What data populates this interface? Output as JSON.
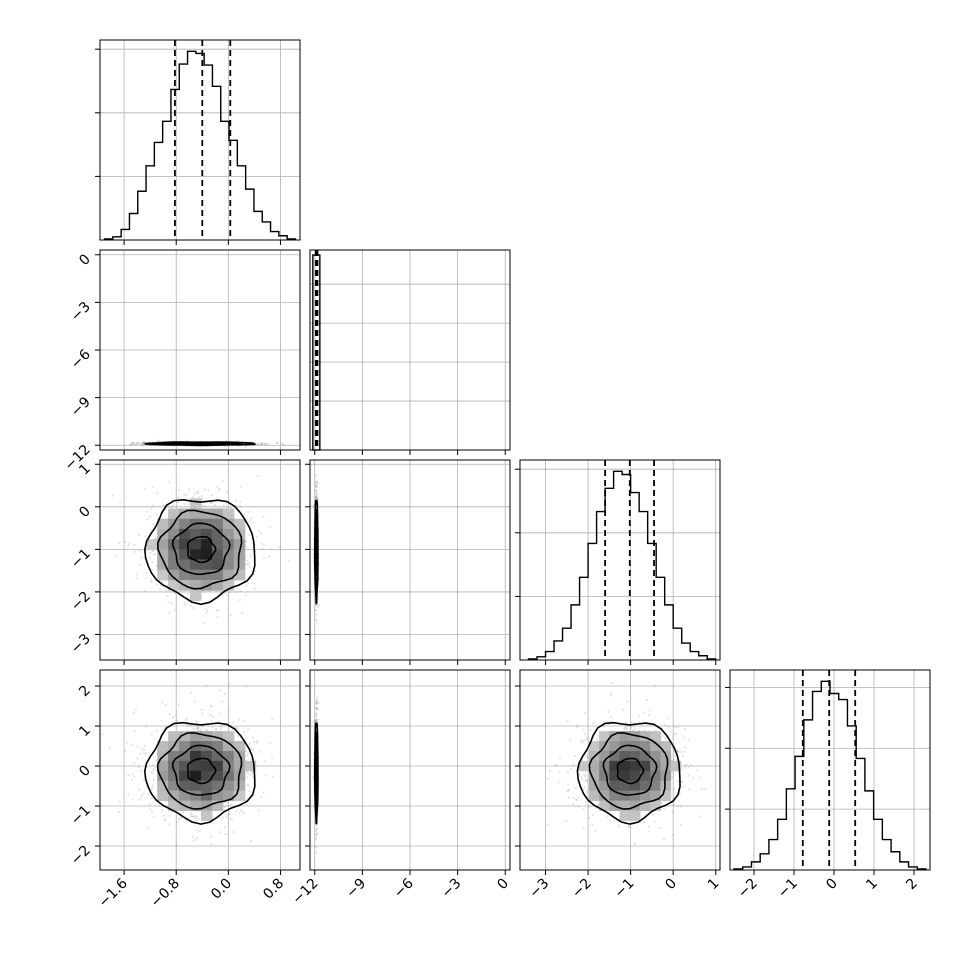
{
  "chart_data": {
    "type": "corner",
    "parameters": [
      {
        "index": 0,
        "range": [
          -1.97,
          1.1
        ],
        "ticks": [
          -1.6,
          -0.8,
          0.0,
          0.8
        ],
        "tick_labels": [
          "−1.6",
          "−0.8",
          "0.0",
          "0.8"
        ],
        "hist_edges_range": [
          -1.9,
          1.03
        ],
        "hist_values": [
          1,
          3,
          10,
          25,
          46,
          70,
          92,
          112,
          142,
          166,
          178,
          176,
          165,
          145,
          112,
          94,
          70,
          48,
          27,
          17,
          8,
          4,
          1
        ],
        "quantiles": [
          -0.82,
          -0.4,
          0.03
        ]
      },
      {
        "index": 1,
        "range": [
          -12.3,
          0.3
        ],
        "ticks": [
          -12,
          -9,
          -6,
          -3,
          0
        ],
        "tick_labels": [
          "−12",
          "−9",
          "−6",
          "−3",
          "0"
        ],
        "y_tick_labels": [
          "0",
          "−3",
          "−6",
          "−9",
          "−12"
        ],
        "hist_spike_at": -11.9,
        "quantiles": [
          -11.93,
          -11.88,
          -11.83
        ]
      },
      {
        "index": 2,
        "range": [
          -3.6,
          1.1
        ],
        "ticks": [
          -3,
          -2,
          -1,
          0,
          1
        ],
        "tick_labels": [
          "−3",
          "−2",
          "−1",
          "0",
          "1"
        ],
        "y_tick_labels": [
          "1",
          "0",
          "−1",
          "−2",
          "−3"
        ],
        "hist_edges_range": [
          -3.4,
          1.0
        ],
        "hist_values": [
          1,
          3,
          8,
          18,
          30,
          52,
          78,
          110,
          140,
          162,
          178,
          175,
          158,
          140,
          110,
          78,
          52,
          30,
          16,
          8,
          4,
          1
        ],
        "quantiles": [
          -1.6,
          -1.02,
          -0.45
        ]
      },
      {
        "index": 3,
        "range": [
          -2.6,
          2.4
        ],
        "ticks": [
          -2,
          -1,
          0,
          1,
          2
        ],
        "tick_labels": [
          "−2",
          "−1",
          "0",
          "1",
          "2"
        ],
        "y_tick_labels": [
          "2",
          "1",
          "0",
          "−1",
          "−2"
        ],
        "hist_edges_range": [
          -2.5,
          2.3
        ],
        "hist_values": [
          1,
          3,
          8,
          16,
          30,
          50,
          80,
          112,
          148,
          176,
          186,
          174,
          168,
          142,
          110,
          78,
          50,
          30,
          18,
          8,
          3,
          1
        ],
        "quantiles": [
          -0.78,
          -0.12,
          0.53
        ]
      }
    ],
    "pairs": [
      {
        "x": 0,
        "y": 1,
        "center": [
          -0.42,
          -11.9
        ],
        "spread": [
          0.42,
          0.05
        ]
      },
      {
        "x": 0,
        "y": 2,
        "center": [
          -0.42,
          -1.0
        ],
        "spread": [
          0.42,
          0.6
        ]
      },
      {
        "x": 1,
        "y": 2,
        "center": [
          -11.9,
          -1.0
        ],
        "spread": [
          0.05,
          0.6
        ]
      },
      {
        "x": 0,
        "y": 3,
        "center": [
          -0.42,
          -0.12
        ],
        "spread": [
          0.42,
          0.62
        ]
      },
      {
        "x": 1,
        "y": 3,
        "center": [
          -11.9,
          -0.12
        ],
        "spread": [
          0.05,
          0.62
        ]
      },
      {
        "x": 2,
        "y": 3,
        "center": [
          -1.02,
          -0.12
        ],
        "spread": [
          0.6,
          0.62
        ]
      }
    ],
    "contour_levels_sigma": [
      0.5,
      1.0,
      1.5,
      2.0
    ],
    "grid": true
  }
}
